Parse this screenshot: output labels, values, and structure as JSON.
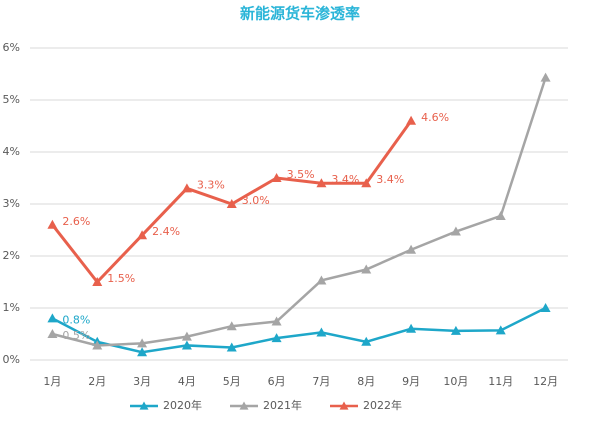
{
  "chart_data": {
    "type": "line",
    "title": "新能源货车渗透率",
    "categories": [
      "1月",
      "2月",
      "3月",
      "4月",
      "5月",
      "6月",
      "7月",
      "8月",
      "9月",
      "10月",
      "11月",
      "12月"
    ],
    "series": [
      {
        "name": "2020年",
        "color": "#1ea7c9",
        "values": [
          0.8,
          0.35,
          0.15,
          0.28,
          0.24,
          0.42,
          0.53,
          0.35,
          0.6,
          0.56,
          0.57,
          1.0
        ],
        "value_labels": [
          "0.8%",
          null,
          null,
          null,
          null,
          null,
          null,
          null,
          null,
          null,
          null,
          null
        ]
      },
      {
        "name": "2021年",
        "color": "#a5a5a5",
        "values": [
          0.5,
          0.28,
          0.32,
          0.45,
          0.65,
          0.74,
          1.53,
          1.74,
          2.12,
          2.47,
          2.77,
          5.43
        ],
        "value_labels": [
          "0.5%",
          null,
          null,
          null,
          null,
          null,
          null,
          null,
          null,
          null,
          null,
          null
        ]
      },
      {
        "name": "2022年",
        "color": "#e8604c",
        "values": [
          2.6,
          1.5,
          2.4,
          3.3,
          3.0,
          3.5,
          3.4,
          3.4,
          4.6,
          null,
          null,
          null
        ],
        "value_labels": [
          "2.6%",
          "1.5%",
          "2.4%",
          "3.3%",
          "3.0%",
          "3.5%",
          "3.4%",
          "3.4%",
          "4.6%",
          null,
          null,
          null
        ]
      }
    ],
    "ylim": [
      0,
      6
    ],
    "yticks": [
      {
        "value": 0,
        "label": "0%"
      },
      {
        "value": 1,
        "label": "1%"
      },
      {
        "value": 2,
        "label": "2%"
      },
      {
        "value": 3,
        "label": "3%"
      },
      {
        "value": 4,
        "label": "4%"
      },
      {
        "value": 5,
        "label": "5%"
      },
      {
        "value": 6,
        "label": "6%"
      }
    ],
    "grid": true,
    "legend": "bottom"
  }
}
